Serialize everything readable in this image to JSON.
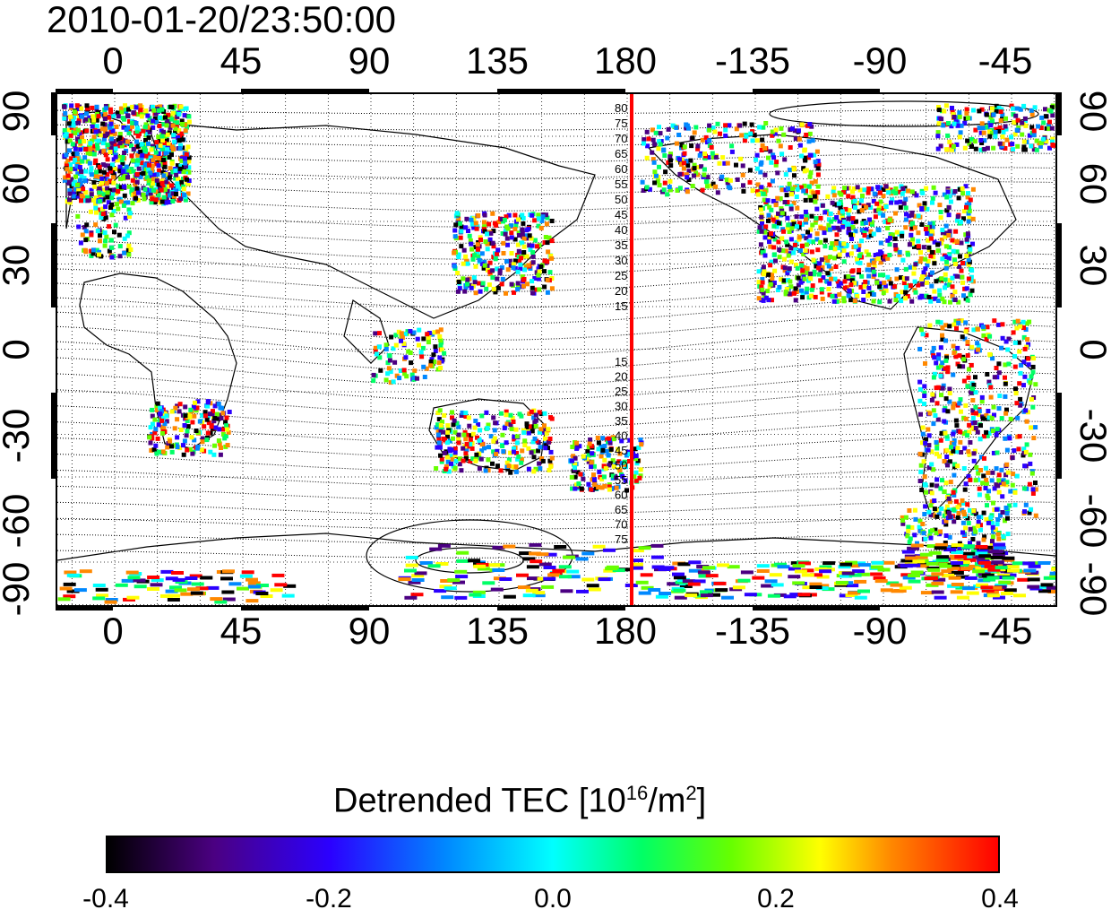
{
  "timestamp": "2010-01-20/23:50:00",
  "lon_ticks": [
    "0",
    "45",
    "90",
    "135",
    "180",
    "-135",
    "-90",
    "-45"
  ],
  "lat_ticks": [
    "90",
    "60",
    "30",
    "0",
    "-30",
    "-60",
    "-90"
  ],
  "contour_labels_north": [
    "80",
    "75",
    "70",
    "65",
    "60",
    "55",
    "50",
    "45",
    "40",
    "35",
    "30",
    "25",
    "20",
    "15"
  ],
  "contour_labels_south": [
    "15",
    "20",
    "25",
    "30",
    "35",
    "40",
    "45",
    "50",
    "55",
    "60",
    "65",
    "70",
    "75"
  ],
  "colorbar": {
    "title_main": "Detrended TEC  [10",
    "title_exp1": "16",
    "title_mid": "/m",
    "title_exp2": "2",
    "title_end": "]",
    "ticks": [
      "-0.4",
      "-0.2",
      "0.0",
      "0.2",
      "0.4"
    ],
    "min": -0.4,
    "max": 0.4
  },
  "colors": {
    "terminator_line": "#ff0000",
    "gradient": [
      "#000000",
      "#4b0082",
      "#2b00ff",
      "#0088ff",
      "#00ffff",
      "#00ff66",
      "#66ff00",
      "#ffff00",
      "#ff8800",
      "#ff0000"
    ]
  }
}
